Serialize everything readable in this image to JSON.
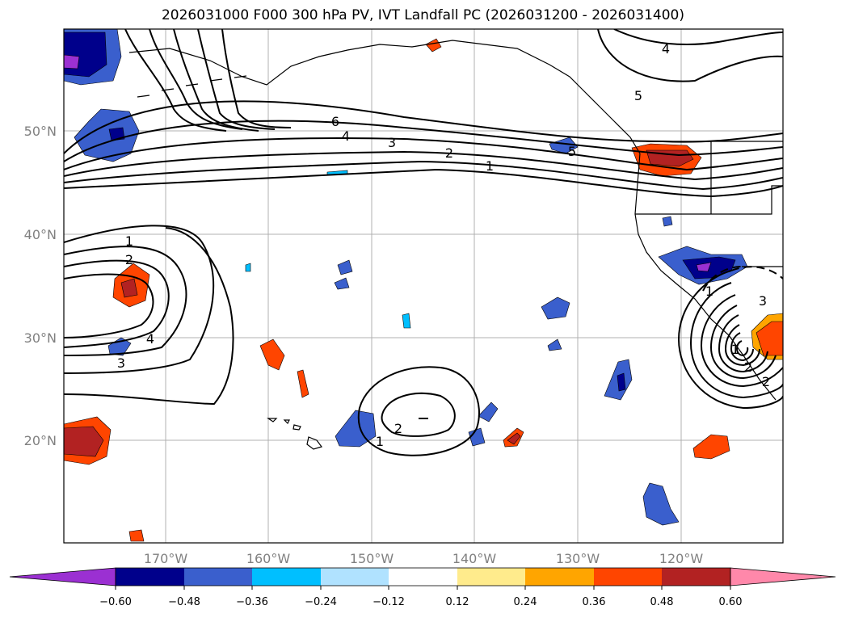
{
  "title": "2026031000 F000 300 hPa PV, IVT Landfall PC (2026031200 - 2026031400)",
  "map": {
    "lat_labels": [
      "50°N",
      "40°N",
      "30°N",
      "20°N"
    ],
    "lon_labels": [
      "170°W",
      "160°W",
      "150°W",
      "140°W",
      "130°W",
      "120°W"
    ],
    "grid": true,
    "grid_color": "#b0b0b0",
    "label_color": "#808080",
    "contour_color": "#000000",
    "contour_labels": [
      "6",
      "4",
      "3",
      "2",
      "1",
      "5",
      "4",
      "1",
      "2",
      "4",
      "3",
      "1",
      "2",
      "1",
      "3",
      "1",
      "2",
      "2",
      "5"
    ]
  },
  "colorbar": {
    "ticks": [
      "−0.60",
      "−0.48",
      "−0.36",
      "−0.24",
      "−0.12",
      "0.12",
      "0.24",
      "0.36",
      "0.48",
      "0.60"
    ],
    "colors": [
      "#9b30d2",
      "#00008b",
      "#3a5fcd",
      "#00bfff",
      "#b0e2ff",
      "#ffffff",
      "#ffeb8c",
      "#ffa500",
      "#ff4500",
      "#b22222",
      "#ff88aa"
    ]
  }
}
